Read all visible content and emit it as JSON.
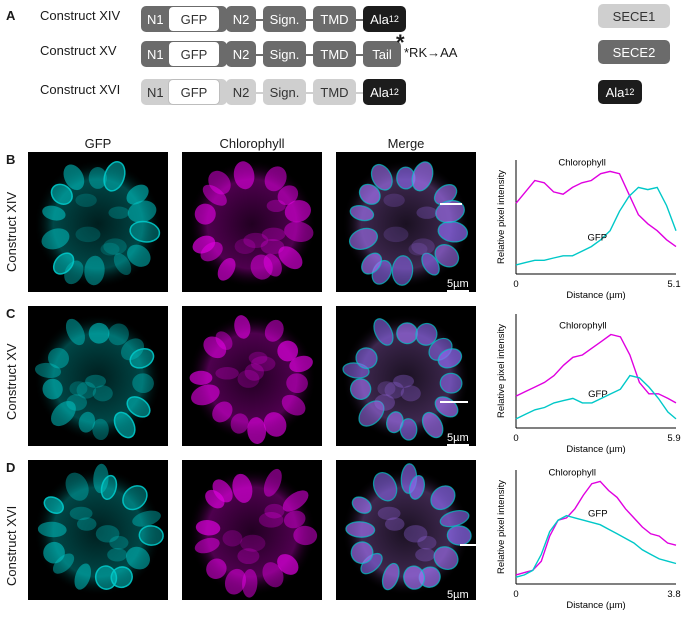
{
  "panel_a": {
    "letter": "A",
    "constructs": [
      {
        "label": "Construct XIV",
        "n1": "N1",
        "gfp": "GFP",
        "n2": "N2",
        "sign": "Sign.",
        "tmd": "TMD",
        "last": "Ala",
        "last_sub": "12"
      },
      {
        "label": "Construct XV",
        "n1": "N1",
        "gfp": "GFP",
        "n2": "N2",
        "sign": "Sign.",
        "tmd": "TMD",
        "last": "Tail",
        "star": "*",
        "mutation": "*RK→AA"
      },
      {
        "label": "Construct XVI",
        "n1": "N1",
        "gfp": "GFP",
        "n2": "N2",
        "sign": "Sign.",
        "tmd": "TMD",
        "last": "Ala",
        "last_sub": "12"
      }
    ],
    "legend": [
      {
        "label": "SECE1",
        "color": "#cfcfcf"
      },
      {
        "label": "SECE2",
        "color": "#6b6b6b"
      },
      {
        "label": "Ala",
        "sub": "12",
        "color": "#1c1c1c"
      }
    ],
    "colors": {
      "dark_box": "#6b6b6b",
      "light_box": "#cfcfcf",
      "black_box": "#1c1c1c"
    }
  },
  "columns": {
    "gfp": "GFP",
    "chlorophyll": "Chlorophyll",
    "merge": "Merge"
  },
  "rows": [
    {
      "letter": "B",
      "label": "Construct XIV",
      "scale": "5µm"
    },
    {
      "letter": "C",
      "label": "Construct XV",
      "scale": "5µm"
    },
    {
      "letter": "D",
      "label": "Construct XVI",
      "scale": "5µm"
    }
  ],
  "colors": {
    "gfp": "#00c8c8",
    "chlorophyll": "#e000e0"
  },
  "chart_data": [
    {
      "type": "line",
      "ylabel": "Relative pixel intensity",
      "xlabel": "Distance (µm)",
      "xlim": [
        0,
        5.1
      ],
      "xticks": [
        "0",
        "5.1"
      ],
      "ylim": [
        0,
        1
      ],
      "series": [
        {
          "name": "Chlorophyll",
          "color": "#e000e0",
          "x": [
            0,
            0.3,
            0.6,
            0.9,
            1.2,
            1.5,
            1.8,
            2.1,
            2.4,
            2.7,
            3.0,
            3.3,
            3.6,
            3.9,
            4.2,
            4.5,
            4.8,
            5.1
          ],
          "y": [
            0.62,
            0.72,
            0.82,
            0.8,
            0.72,
            0.7,
            0.76,
            0.8,
            0.82,
            0.88,
            0.9,
            0.88,
            0.7,
            0.52,
            0.44,
            0.38,
            0.3,
            0.24
          ]
        },
        {
          "name": "GFP",
          "color": "#00c8c8",
          "x": [
            0,
            0.3,
            0.6,
            0.9,
            1.2,
            1.5,
            1.8,
            2.1,
            2.4,
            2.7,
            3.0,
            3.3,
            3.6,
            3.9,
            4.2,
            4.5,
            4.8,
            5.1
          ],
          "y": [
            0.08,
            0.1,
            0.12,
            0.12,
            0.14,
            0.16,
            0.16,
            0.2,
            0.24,
            0.3,
            0.38,
            0.55,
            0.68,
            0.76,
            0.74,
            0.76,
            0.6,
            0.38
          ]
        }
      ]
    },
    {
      "type": "line",
      "ylabel": "Relative pixel intensity",
      "xlabel": "Distance (µm)",
      "xlim": [
        0,
        5.9
      ],
      "xticks": [
        "0",
        "5.9"
      ],
      "ylim": [
        0,
        1
      ],
      "series": [
        {
          "name": "Chlorophyll",
          "color": "#e000e0",
          "x": [
            0,
            0.35,
            0.7,
            1.05,
            1.4,
            1.75,
            2.1,
            2.45,
            2.8,
            3.15,
            3.5,
            3.85,
            4.2,
            4.55,
            4.9,
            5.25,
            5.6,
            5.9
          ],
          "y": [
            0.28,
            0.32,
            0.36,
            0.4,
            0.46,
            0.55,
            0.62,
            0.64,
            0.7,
            0.76,
            0.82,
            0.8,
            0.64,
            0.4,
            0.3,
            0.3,
            0.26,
            0.22
          ]
        },
        {
          "name": "GFP",
          "color": "#00c8c8",
          "x": [
            0,
            0.35,
            0.7,
            1.05,
            1.4,
            1.75,
            2.1,
            2.45,
            2.8,
            3.15,
            3.5,
            3.85,
            4.2,
            4.55,
            4.9,
            5.25,
            5.6,
            5.9
          ],
          "y": [
            0.08,
            0.12,
            0.16,
            0.18,
            0.22,
            0.24,
            0.26,
            0.22,
            0.22,
            0.26,
            0.3,
            0.34,
            0.46,
            0.44,
            0.36,
            0.26,
            0.14,
            0.08
          ]
        }
      ]
    },
    {
      "type": "line",
      "ylabel": "Relative pixel intensity",
      "xlabel": "Distance (µm)",
      "xlim": [
        0,
        3.8
      ],
      "xticks": [
        "0",
        "3.8"
      ],
      "ylim": [
        0,
        1
      ],
      "series": [
        {
          "name": "Chlorophyll",
          "color": "#e000e0",
          "x": [
            0,
            0.2,
            0.4,
            0.6,
            0.8,
            1.0,
            1.2,
            1.4,
            1.6,
            1.8,
            2.0,
            2.2,
            2.4,
            2.6,
            2.8,
            3.0,
            3.2,
            3.4,
            3.6,
            3.8
          ],
          "y": [
            0.08,
            0.1,
            0.12,
            0.2,
            0.42,
            0.56,
            0.58,
            0.66,
            0.78,
            0.88,
            0.9,
            0.82,
            0.76,
            0.66,
            0.58,
            0.5,
            0.44,
            0.42,
            0.36,
            0.34
          ]
        },
        {
          "name": "GFP",
          "color": "#00c8c8",
          "x": [
            0,
            0.2,
            0.4,
            0.6,
            0.8,
            1.0,
            1.2,
            1.4,
            1.6,
            1.8,
            2.0,
            2.2,
            2.4,
            2.6,
            2.8,
            3.0,
            3.2,
            3.4,
            3.6,
            3.8
          ],
          "y": [
            0.06,
            0.08,
            0.12,
            0.26,
            0.46,
            0.56,
            0.6,
            0.58,
            0.56,
            0.54,
            0.52,
            0.48,
            0.44,
            0.4,
            0.36,
            0.3,
            0.26,
            0.22,
            0.2,
            0.18
          ]
        }
      ]
    }
  ]
}
